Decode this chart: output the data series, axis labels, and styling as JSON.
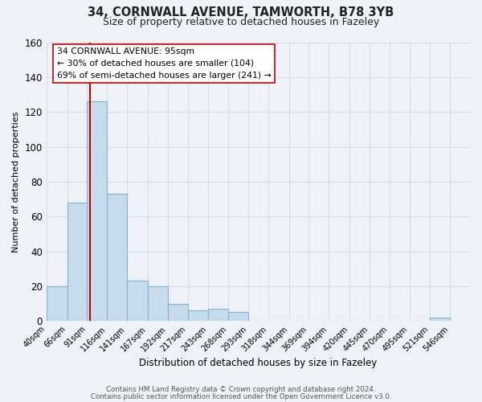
{
  "title_line1": "34, CORNWALL AVENUE, TAMWORTH, B78 3YB",
  "title_line2": "Size of property relative to detached houses in Fazeley",
  "xlabel": "Distribution of detached houses by size in Fazeley",
  "ylabel": "Number of detached properties",
  "bar_left_edges": [
    40,
    66,
    91,
    116,
    141,
    167,
    192,
    217,
    243,
    268,
    293,
    318,
    344,
    369,
    394,
    420,
    445,
    470,
    495,
    521
  ],
  "bar_widths": [
    26,
    25,
    25,
    25,
    26,
    25,
    25,
    26,
    25,
    25,
    25,
    26,
    25,
    25,
    26,
    25,
    25,
    25,
    26,
    25
  ],
  "bar_heights": [
    20,
    68,
    126,
    73,
    23,
    20,
    10,
    6,
    7,
    5,
    0,
    0,
    0,
    0,
    0,
    0,
    0,
    0,
    0,
    2
  ],
  "bar_color": "#c6dcec",
  "bar_edge_color": "#7fb4d4",
  "bar_edge_width": 0.8,
  "ylim": [
    0,
    160
  ],
  "yticks": [
    0,
    20,
    40,
    60,
    80,
    100,
    120,
    140,
    160
  ],
  "xtick_labels": [
    "40sqm",
    "66sqm",
    "91sqm",
    "116sqm",
    "141sqm",
    "167sqm",
    "192sqm",
    "217sqm",
    "243sqm",
    "268sqm",
    "293sqm",
    "318sqm",
    "344sqm",
    "369sqm",
    "394sqm",
    "420sqm",
    "445sqm",
    "470sqm",
    "495sqm",
    "521sqm",
    "546sqm"
  ],
  "xtick_positions": [
    40,
    66,
    91,
    116,
    141,
    167,
    192,
    217,
    243,
    268,
    293,
    318,
    344,
    369,
    394,
    420,
    445,
    470,
    495,
    521,
    546
  ],
  "xlim": [
    40,
    571
  ],
  "vline_x": 95,
  "vline_color": "#cc0000",
  "vline_linewidth": 1.5,
  "annotation_line1": "34 CORNWALL AVENUE: 95sqm",
  "annotation_line2": "← 30% of detached houses are smaller (104)",
  "annotation_line3": "69% of semi-detached houses are larger (241) →",
  "annotation_box_color": "white",
  "annotation_box_edge_color": "#cc0000",
  "grid_color": "#d0dce8",
  "background_color": "#eef2f7",
  "footer_line1": "Contains HM Land Registry data © Crown copyright and database right 2024.",
  "footer_line2": "Contains public sector information licensed under the Open Government Licence v3.0."
}
